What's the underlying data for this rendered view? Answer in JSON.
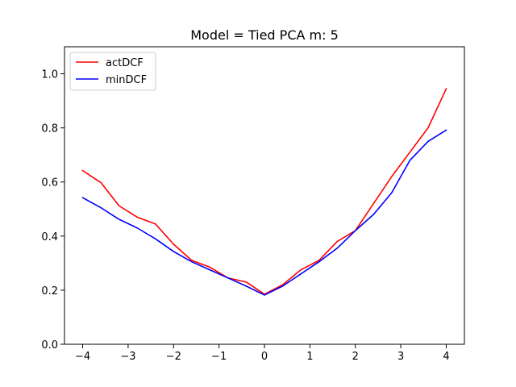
{
  "chart_data": {
    "type": "line",
    "title": "Model = Tied PCA m: 5",
    "xlabel": "",
    "ylabel": "",
    "xlim": [
      -4.4,
      4.4
    ],
    "ylim": [
      0.0,
      1.1
    ],
    "grid": false,
    "legend_position": "top-left",
    "xticks": [
      -4,
      -3,
      -2,
      -1,
      0,
      1,
      2,
      3,
      4
    ],
    "xtick_labels": [
      "−4",
      "−3",
      "−2",
      "−1",
      "0",
      "1",
      "2",
      "3",
      "4"
    ],
    "yticks": [
      0.0,
      0.2,
      0.4,
      0.6,
      0.8,
      1.0
    ],
    "ytick_labels": [
      "0.0",
      "0.2",
      "0.4",
      "0.6",
      "0.8",
      "1.0"
    ],
    "x": [
      -4.0,
      -3.6,
      -3.2,
      -2.8,
      -2.4,
      -2.0,
      -1.6,
      -1.2,
      -0.8,
      -0.4,
      0.0,
      0.4,
      0.8,
      1.2,
      1.6,
      2.0,
      2.4,
      2.8,
      3.2,
      3.6,
      4.0
    ],
    "series": [
      {
        "name": "actDCF",
        "color": "#ff0000",
        "values": [
          0.642,
          0.598,
          0.512,
          0.47,
          0.445,
          0.37,
          0.31,
          0.285,
          0.245,
          0.23,
          0.185,
          0.22,
          0.275,
          0.31,
          0.38,
          0.42,
          0.52,
          0.62,
          0.71,
          0.8,
          0.945
        ]
      },
      {
        "name": "minDCF",
        "color": "#0000ff",
        "values": [
          0.542,
          0.505,
          0.462,
          0.43,
          0.39,
          0.343,
          0.305,
          0.275,
          0.245,
          0.215,
          0.182,
          0.215,
          0.26,
          0.305,
          0.355,
          0.42,
          0.48,
          0.56,
          0.68,
          0.75,
          0.792
        ]
      }
    ]
  }
}
